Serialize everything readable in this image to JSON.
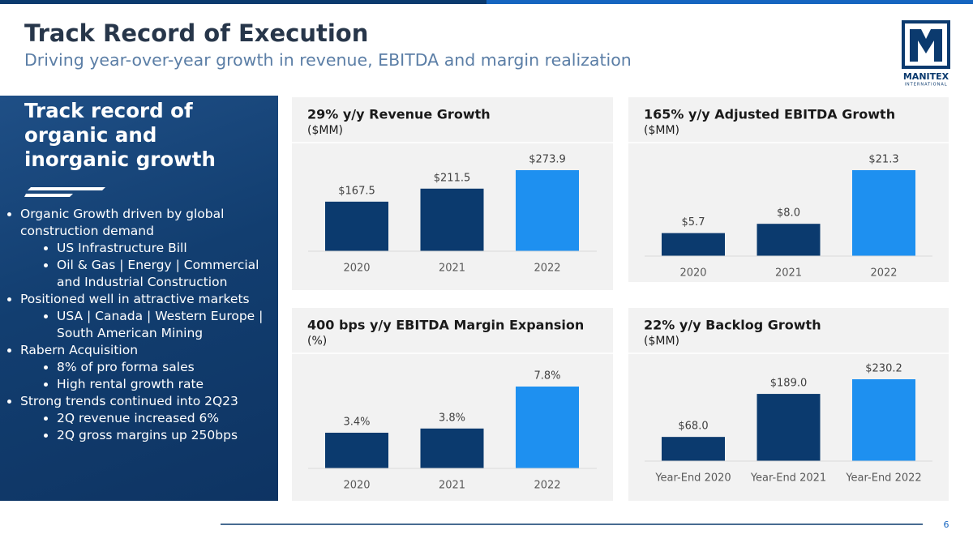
{
  "header": {
    "title": "Track Record of Execution",
    "subtitle": "Driving year-over-year growth in revenue, EBITDA and margin realization"
  },
  "logo": {
    "name": "MANITEX",
    "tagline": "INTERNATIONAL"
  },
  "sidebar": {
    "heading": "Track record of organic and inorganic growth",
    "bullets": [
      {
        "text": "Organic Growth driven by global construction demand",
        "sub": [
          "US Infrastructure Bill",
          "Oil & Gas | Energy | Commercial and Industrial Construction"
        ]
      },
      {
        "text": "Positioned well in attractive markets",
        "sub": [
          "USA | Canada | Western Europe | South American Mining"
        ]
      },
      {
        "text": "Rabern Acquisition",
        "sub": [
          "8% of pro forma sales",
          "High rental growth rate"
        ]
      },
      {
        "text": "Strong trends continued into 2Q23",
        "sub": [
          "2Q revenue increased 6%",
          "2Q gross margins up 250bps"
        ]
      }
    ]
  },
  "chart_data": [
    {
      "type": "bar",
      "title": "29% y/y Revenue Growth",
      "subtitle": "($MM)",
      "categories": [
        "2020",
        "2021",
        "2022"
      ],
      "values": [
        167.5,
        211.5,
        273.9
      ],
      "value_labels": [
        "$167.5",
        "$211.5",
        "$273.9"
      ],
      "colors": [
        "#0b3a6e",
        "#0b3a6e",
        "#1e90f0"
      ]
    },
    {
      "type": "bar",
      "title": "165% y/y Adjusted EBITDA Growth",
      "subtitle": "($MM)",
      "categories": [
        "2020",
        "2021",
        "2022"
      ],
      "values": [
        5.7,
        8.0,
        21.3
      ],
      "value_labels": [
        "$5.7",
        "$8.0",
        "$21.3"
      ],
      "colors": [
        "#0b3a6e",
        "#0b3a6e",
        "#1e90f0"
      ]
    },
    {
      "type": "bar",
      "title": "400 bps y/y EBITDA Margin Expansion",
      "subtitle": "(%)",
      "categories": [
        "2020",
        "2021",
        "2022"
      ],
      "values": [
        3.4,
        3.8,
        7.8
      ],
      "value_labels": [
        "3.4%",
        "3.8%",
        "7.8%"
      ],
      "colors": [
        "#0b3a6e",
        "#0b3a6e",
        "#1e90f0"
      ]
    },
    {
      "type": "bar",
      "title": "22% y/y Backlog Growth",
      "subtitle": "($MM)",
      "categories": [
        "Year-End 2020",
        "Year-End 2021",
        "Year-End 2022"
      ],
      "values": [
        68.0,
        189.0,
        230.2
      ],
      "value_labels": [
        "$68.0",
        "$189.0",
        "$230.2"
      ],
      "colors": [
        "#0b3a6e",
        "#0b3a6e",
        "#1e90f0"
      ]
    }
  ],
  "footer": {
    "page": "6"
  }
}
